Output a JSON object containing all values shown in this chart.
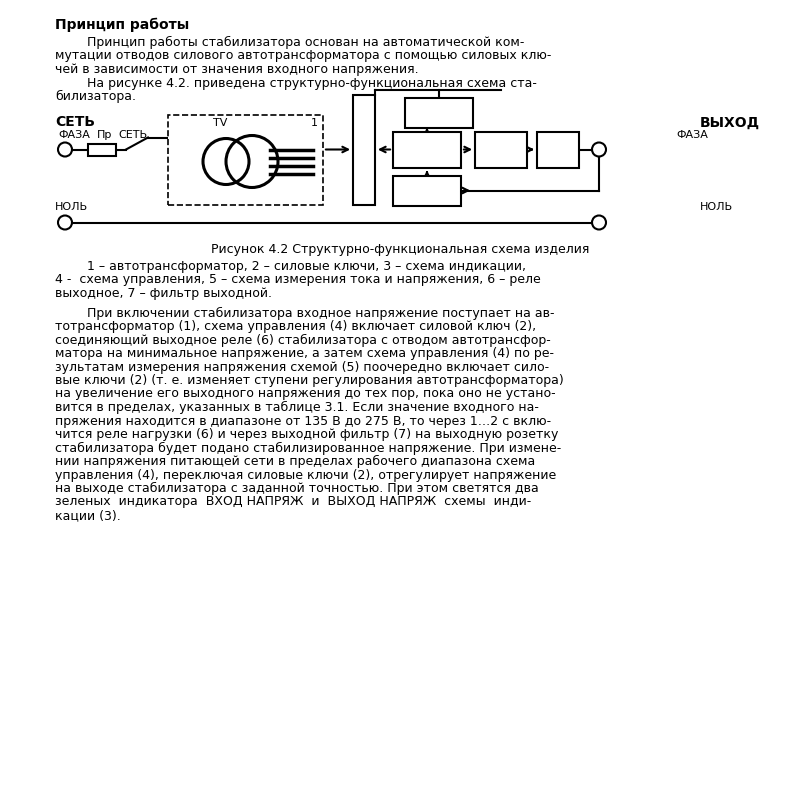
{
  "title_bold": "Принцип работы",
  "para1_lines": [
    "        Принцип работы стабилизатора основан на автоматической ком-",
    "мутации отводов силового автотрансформатора с помощью силовых клю-",
    "чей в зависимости от значения входного напряжения.",
    "        На рисунке 4.2. приведена структурно-функциональная схема ста-",
    "билизатора."
  ],
  "fig_caption": "Рисунок 4.2 Структурно-функциональная схема изделия",
  "fig_legend_lines": [
    "        1 – автотрансформатор, 2 – силовые ключи, 3 – схема индикации,",
    "4 -  схема управления, 5 – схема измерения тока и напряжения, 6 – реле",
    "выходное, 7 – фильтр выходной."
  ],
  "para3_lines": [
    "        При включении стабилизатора входное напряжение поступает на ав-",
    "тотрансформатор (1), схема управления (4) включает силовой ключ (2),",
    "соединяющий выходное реле (6) стабилизатора с отводом автотрансфор-",
    "матора на минимальное напряжение, а затем схема управления (4) по ре-",
    "зультатам измерения напряжения схемой (5) поочередно включает сило-",
    "вые ключи (2) (т. е. изменяет ступени регулирования автотрансформатора)",
    "на увеличение его выходного напряжения до тех пор, пока оно не устано-",
    "вится в пределах, указанных в таблице 3.1. Если значение входного на-",
    "пряжения находится в диапазоне от 135 В до 275 В, то через 1…2 с вклю-",
    "чится реле нагрузки (6) и через выходной фильтр (7) на выходную розетку",
    "стабилизатора будет подано стабилизированное напряжение. При измене-",
    "нии напряжения питающей сети в пределах рабочего диапазона схема",
    "управления (4), переключая силовые ключи (2), отрегулирует напряжение",
    "на выходе стабилизатора с заданной точностью. При этом светятся два",
    "зеленых  индикатора  ВХОД НАПРЯЖ  и  ВЫХОД НАПРЯЖ  схемы  инди-",
    "кации (3)."
  ],
  "background_color": "#ffffff",
  "text_color": "#000000",
  "lh": 13.5
}
